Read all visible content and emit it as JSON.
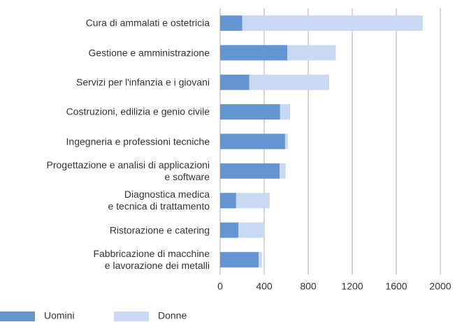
{
  "chart_data": {
    "type": "stacked-barh",
    "categories": [
      "Cura di ammalati e ostetricia",
      "Gestione e amministrazione",
      "Servizi per l'infanzia e i giovani",
      "Costruzioni, edilizia e genio civile",
      "Ingegneria e professioni tecniche",
      "Progettazione e analisi di applicazioni\ne software",
      "Diagnostica medica\ne tecnica di trattamento",
      "Ristorazione e catering",
      "Fabbricazione di macchine\ne lavorazione dei metalli"
    ],
    "series": [
      {
        "name": "Uomini",
        "color": "#6495d3",
        "values": [
          200,
          610,
          265,
          545,
          590,
          540,
          145,
          165,
          350
        ]
      },
      {
        "name": "Donne",
        "color": "#c9d9f2",
        "values": [
          1640,
          440,
          725,
          90,
          25,
          55,
          305,
          235,
          30
        ]
      }
    ],
    "xlim": [
      0,
      2000
    ],
    "xticks": [
      0,
      400,
      800,
      1200,
      1600,
      2000
    ],
    "grid": true,
    "legend": "bottom"
  }
}
